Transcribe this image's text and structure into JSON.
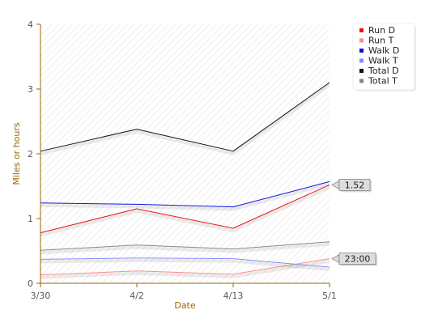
{
  "chart_data": {
    "type": "line",
    "xlabel": "Date",
    "ylabel": "Miles or hours",
    "categories": [
      "3/30",
      "4/2",
      "4/13",
      "5/1"
    ],
    "y_ticks": [
      "0",
      "1",
      "2",
      "3",
      "4"
    ],
    "ylim": [
      0,
      4
    ],
    "grid": false,
    "legend_position": "top-right",
    "series": [
      {
        "name": "Run D",
        "color": "#ee1111",
        "values": [
          0.78,
          1.15,
          0.85,
          1.52
        ]
      },
      {
        "name": "Run T",
        "color": "#ff8a8a",
        "values": [
          0.13,
          0.19,
          0.14,
          0.38
        ]
      },
      {
        "name": "Walk D",
        "color": "#1111dd",
        "values": [
          1.24,
          1.22,
          1.18,
          1.57
        ]
      },
      {
        "name": "Walk T",
        "color": "#8a8aff",
        "values": [
          0.37,
          0.39,
          0.38,
          0.25
        ]
      },
      {
        "name": "Total D",
        "color": "#111111",
        "values": [
          2.04,
          2.38,
          2.04,
          3.1
        ]
      },
      {
        "name": "Total T",
        "color": "#888888",
        "values": [
          0.51,
          0.59,
          0.53,
          0.64
        ]
      }
    ],
    "annotations": [
      {
        "text": "1.52",
        "series": "Run D",
        "x": "5/1",
        "y": 1.52
      },
      {
        "text": "23:00",
        "series": "Run T",
        "x": "5/1",
        "y": 0.38
      }
    ],
    "colors": {
      "axis": "#996600",
      "tick_text": "#555555",
      "axis_title": "#996600",
      "plot_bg": "#ffffff",
      "hatch": "#eeeeee",
      "tooltip_bg": "#dddddd"
    }
  }
}
